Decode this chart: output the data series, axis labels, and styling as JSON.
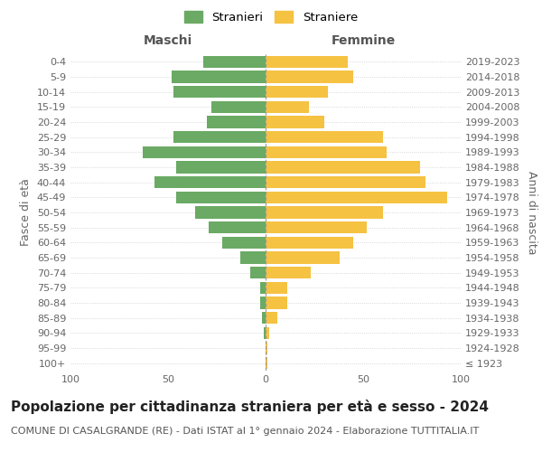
{
  "age_groups": [
    "100+",
    "95-99",
    "90-94",
    "85-89",
    "80-84",
    "75-79",
    "70-74",
    "65-69",
    "60-64",
    "55-59",
    "50-54",
    "45-49",
    "40-44",
    "35-39",
    "30-34",
    "25-29",
    "20-24",
    "15-19",
    "10-14",
    "5-9",
    "0-4"
  ],
  "birth_years": [
    "≤ 1923",
    "1924-1928",
    "1929-1933",
    "1934-1938",
    "1939-1943",
    "1944-1948",
    "1949-1953",
    "1954-1958",
    "1959-1963",
    "1964-1968",
    "1969-1973",
    "1974-1978",
    "1979-1983",
    "1984-1988",
    "1989-1993",
    "1994-1998",
    "1999-2003",
    "2004-2008",
    "2009-2013",
    "2014-2018",
    "2019-2023"
  ],
  "maschi": [
    0,
    0,
    1,
    2,
    3,
    3,
    8,
    13,
    22,
    29,
    36,
    46,
    57,
    46,
    63,
    47,
    30,
    28,
    47,
    48,
    32
  ],
  "femmine": [
    1,
    1,
    2,
    6,
    11,
    11,
    23,
    38,
    45,
    52,
    60,
    93,
    82,
    79,
    62,
    60,
    30,
    22,
    32,
    45,
    42
  ],
  "maschi_color": "#6aaa64",
  "femmine_color": "#f5c242",
  "background_color": "#ffffff",
  "grid_color": "#cccccc",
  "title": "Popolazione per cittadinanza straniera per età e sesso - 2024",
  "subtitle": "COMUNE DI CASALGRANDE (RE) - Dati ISTAT al 1° gennaio 2024 - Elaborazione TUTTITALIA.IT",
  "xlabel_left": "Maschi",
  "xlabel_right": "Femmine",
  "ylabel_left": "Fasce di età",
  "ylabel_right": "Anni di nascita",
  "legend_maschi": "Stranieri",
  "legend_femmine": "Straniere",
  "xlim": 100,
  "bar_height": 0.8,
  "title_fontsize": 11,
  "subtitle_fontsize": 8,
  "label_fontsize": 9,
  "tick_fontsize": 8,
  "legend_fontsize": 9.5
}
